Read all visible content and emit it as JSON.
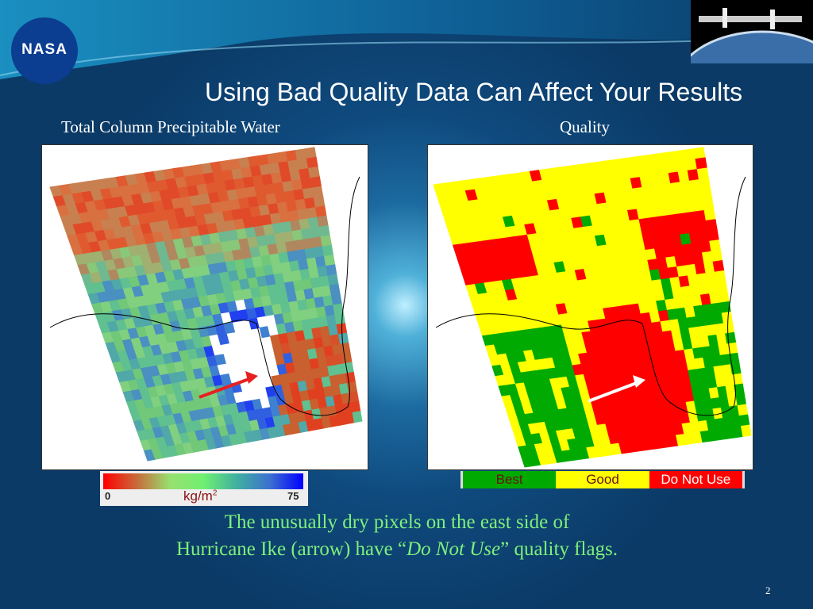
{
  "slide": {
    "title": "Using Bad Quality Data Can Affect Your Results",
    "page_number": "2",
    "logo_text": "NASA"
  },
  "left_panel": {
    "caption": "Total Column Precipitable Water",
    "colorbar": {
      "min": "0",
      "max": "75",
      "unit": "kg/m",
      "unit_sup": "2",
      "colors": [
        "#ff0000",
        "#98e070",
        "#0000ff"
      ]
    }
  },
  "right_panel": {
    "caption": "Quality",
    "legend": [
      {
        "label": "Best",
        "color": "#00aa00"
      },
      {
        "label": "Good",
        "color": "#ffff00"
      },
      {
        "label": "Do Not Use",
        "color": "#ff0000"
      }
    ]
  },
  "note": {
    "line1": "The unusually dry pixels on the east side of",
    "line2_pre": "Hurricane Ike (arrow) have “",
    "line2_em": "Do Not Use",
    "line2_post": "” quality flags."
  }
}
